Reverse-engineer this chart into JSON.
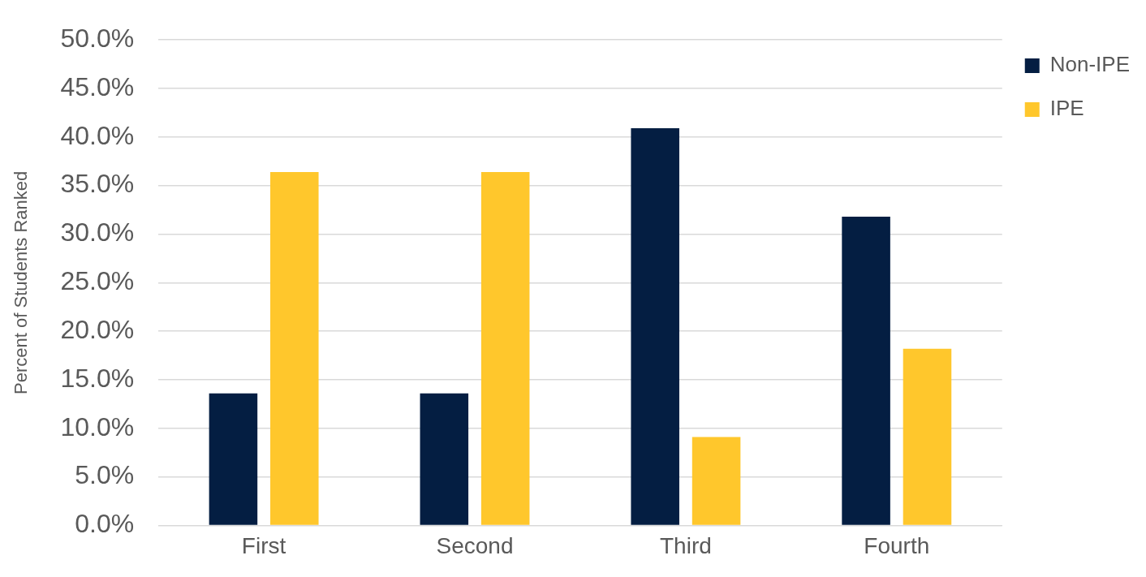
{
  "chart_data": {
    "type": "bar",
    "ylabel": "Percent of Students Ranked",
    "categories": [
      "First",
      "Second",
      "Third",
      "Fourth"
    ],
    "series": [
      {
        "name": "Non-IPE",
        "color": "#041e42",
        "values": [
          13.6,
          13.6,
          40.9,
          31.8
        ]
      },
      {
        "name": "IPE",
        "color": "#ffc72c",
        "values": [
          36.4,
          36.4,
          9.1,
          18.2
        ]
      }
    ],
    "ylim": [
      0,
      50
    ],
    "yticks": [
      {
        "value": 0,
        "label": "0.0%"
      },
      {
        "value": 5,
        "label": "5.0%"
      },
      {
        "value": 10,
        "label": "10.0%"
      },
      {
        "value": 15,
        "label": "15.0%"
      },
      {
        "value": 20,
        "label": "20.0%"
      },
      {
        "value": 25,
        "label": "25.0%"
      },
      {
        "value": 30,
        "label": "30.0%"
      },
      {
        "value": 35,
        "label": "35.0%"
      },
      {
        "value": 40,
        "label": "40.0%"
      },
      {
        "value": 45,
        "label": "45.0%"
      },
      {
        "value": 50,
        "label": "50.0%"
      }
    ],
    "grid": "y",
    "legend": "top right"
  }
}
